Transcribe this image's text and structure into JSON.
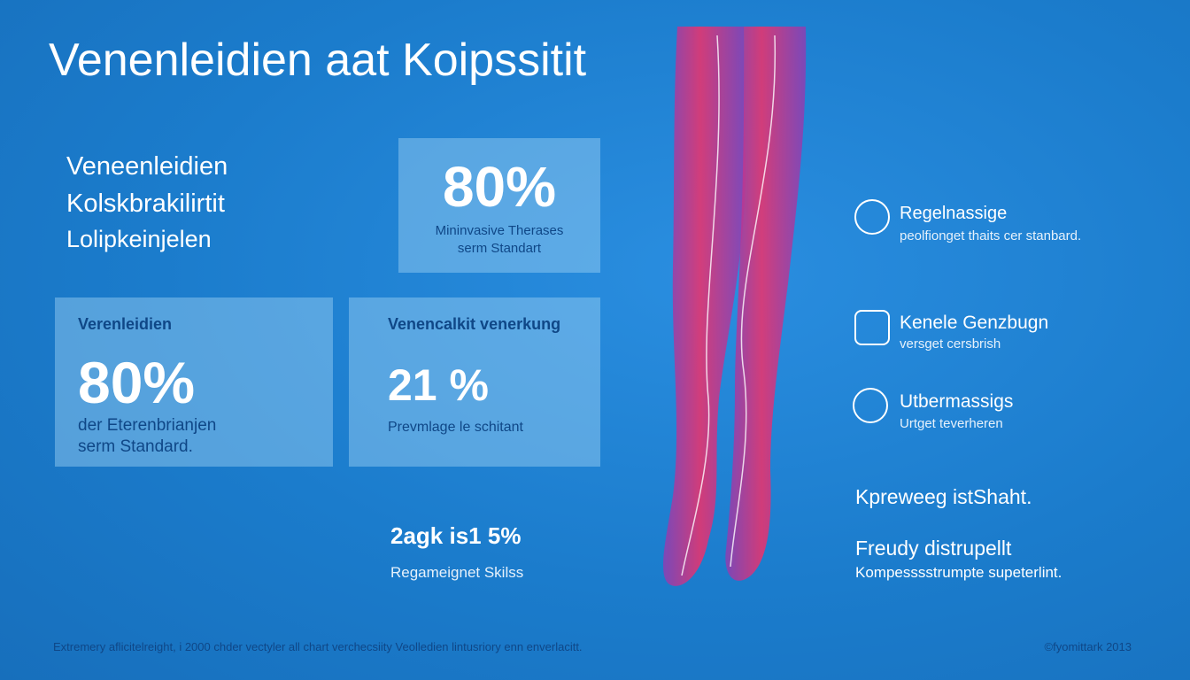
{
  "title": "Venenleidien aat Koipssitit",
  "intro": {
    "lines": [
      "Veneenleidien",
      "Kolskbrakilirtit",
      "Lolipkeinjelen"
    ]
  },
  "stats": [
    {
      "value": "80%",
      "caption": [
        "Mininvasive Therases",
        "serm Standart"
      ]
    },
    {
      "label": "Verenleidien",
      "value": "80%",
      "caption": [
        "der Eterenbrianjen",
        "serm Standard."
      ]
    },
    {
      "label": "Venencalkit venerkung",
      "value": "21 %",
      "caption": [
        "Prevmlage le schitant"
      ]
    },
    {
      "value": "2agk is1 5%",
      "caption": [
        "Regameignet Skilss"
      ]
    }
  ],
  "features": [
    {
      "title": "Regelnassige",
      "text": "peolfionget thaits cer stanbard."
    },
    {
      "title": "Kenele Genzbugn",
      "text": "versget cersbrish"
    },
    {
      "title": "Utbermassigs",
      "text": "Urtget teverheren"
    }
  ],
  "notes": [
    {
      "title": "Kpreweeg istShaht."
    },
    {
      "title": "Freudy distrupellt",
      "text": "Kompesssstrumpte supeterlint."
    }
  ],
  "footer": {
    "left": "Extremery aflicitelreight, i 2000 chder vectyler all chart verchecsiity Veolledien lintusriory enn enverlacitt.",
    "right": "©fyomittark 2013"
  }
}
